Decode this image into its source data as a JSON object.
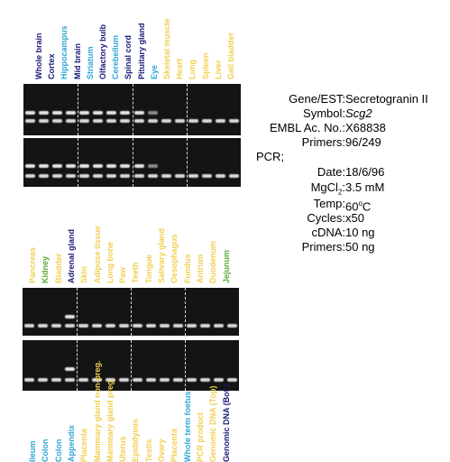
{
  "colors": {
    "dark_blue": "#1a1a7a",
    "light_blue": "#2fa6d6",
    "yellow": "#f0d050",
    "green": "#5aa832"
  },
  "top_lanes": [
    {
      "label": "Whole brain",
      "color": "#1a1a7a"
    },
    {
      "label": "Cortex",
      "color": "#1a1a7a"
    },
    {
      "label": "Hippocampus",
      "color": "#2fa6d6"
    },
    {
      "label": "Mid brain",
      "color": "#1a1a7a"
    },
    {
      "label": "Striatum",
      "color": "#2fa6d6"
    },
    {
      "label": "Olfactory bulb",
      "color": "#1a1a7a"
    },
    {
      "label": "Cerebellum",
      "color": "#2fa6d6"
    },
    {
      "label": "Spinal cord",
      "color": "#1a1a7a"
    },
    {
      "label": "Pituitary gland",
      "color": "#1a1a7a"
    },
    {
      "label": "Eye",
      "color": "#2fa6d6"
    },
    {
      "label": "Skeletal muscle",
      "color": "#f0d050"
    },
    {
      "label": "Heart",
      "color": "#f0d050"
    },
    {
      "label": "Lung",
      "color": "#f0d050"
    },
    {
      "label": "Spleen",
      "color": "#f0d050"
    },
    {
      "label": "Liver",
      "color": "#f0d050"
    },
    {
      "label": "Gall bladder",
      "color": "#f0d050"
    }
  ],
  "mid_lanes": [
    {
      "label": "Pancreas",
      "color": "#f0d050"
    },
    {
      "label": "Kidney",
      "color": "#5aa832"
    },
    {
      "label": "Bladder",
      "color": "#f0d050"
    },
    {
      "label": "Adrenal gland",
      "color": "#1a1a7a"
    },
    {
      "label": "Skin",
      "color": "#f0d050"
    },
    {
      "label": "Adipose tissue",
      "color": "#f0d050"
    },
    {
      "label": "Long bone",
      "color": "#f0d050"
    },
    {
      "label": "Paw",
      "color": "#f0d050"
    },
    {
      "label": "Teeth",
      "color": "#f0d050"
    },
    {
      "label": "Tongue",
      "color": "#f0d050"
    },
    {
      "label": "Salivary gland",
      "color": "#f0d050"
    },
    {
      "label": "Oesophagus",
      "color": "#f0d050"
    },
    {
      "label": "Fundus",
      "color": "#f0d050"
    },
    {
      "label": "Antrum",
      "color": "#f0d050"
    },
    {
      "label": "Duodenum",
      "color": "#f0d050"
    },
    {
      "label": "Jejunum",
      "color": "#5aa832"
    }
  ],
  "bottom_lanes": [
    {
      "label": "Ileum",
      "color": "#2fa6d6"
    },
    {
      "label": "Colon",
      "color": "#2fa6d6"
    },
    {
      "label": "Colon",
      "color": "#2fa6d6"
    },
    {
      "label": "Appendix",
      "color": "#2fa6d6"
    },
    {
      "label": "Placenta",
      "color": "#f0d050"
    },
    {
      "label": "Mammary gland non-preg.",
      "color": "#f0d050"
    },
    {
      "label": "Mammary gland preg.",
      "color": "#f0d050"
    },
    {
      "label": "Uterus",
      "color": "#f0d050"
    },
    {
      "label": "Epididymis",
      "color": "#f0d050"
    },
    {
      "label": "Testis",
      "color": "#f0d050"
    },
    {
      "label": "Ovary",
      "color": "#f0d050"
    },
    {
      "label": "Placenta",
      "color": "#f0d050"
    },
    {
      "label": "Whole term foetus",
      "color": "#2fa6d6"
    },
    {
      "label": "PCR product",
      "color": "#f0d050"
    },
    {
      "label": "Genomic DNA (Top)",
      "color": "#f0d050"
    },
    {
      "label": "Genomic DNA (Bot.)",
      "color": "#1a1a7a"
    }
  ],
  "info": {
    "gene_label": "Gene/EST:",
    "gene_value": "Secretogranin II",
    "symbol_label": "Symbol:",
    "symbol_value": "Scg2",
    "embl_label": "EMBL Ac. No.:",
    "embl_value": "X68838",
    "primers_label": "Primers:",
    "primers_value": "96/249",
    "pcr_label": "PCR;",
    "date_label": "Date:",
    "date_value": "18/6/96",
    "mgcl_label": "MgCl",
    "mgcl_sub": "2",
    "mgcl_colon": ":",
    "mgcl_value": "3.5 mM",
    "temp_label": "Temp:",
    "temp_num": "60",
    "temp_sup": "o",
    "temp_unit": "C",
    "cycles_label": "Cycles:",
    "cycles_value": "x50",
    "cdna_label": "cDNA:",
    "cdna_value": "10 ng",
    "primers2_label": "Primers:",
    "primers2_value": "50 ng"
  }
}
